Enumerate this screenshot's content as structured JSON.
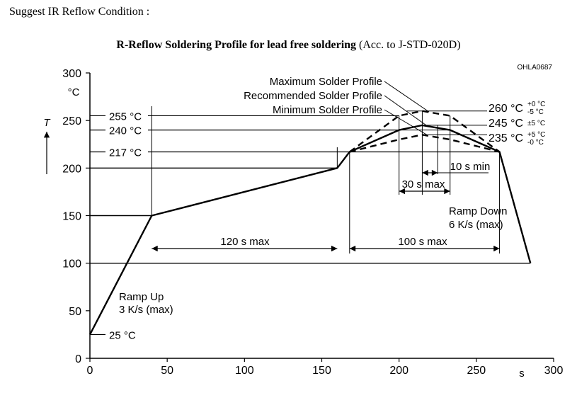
{
  "page": {
    "heading": "Suggest IR Reflow Condition :",
    "title_bold": "R-Reflow Soldering Profile for lead free soldering",
    "title_normal": "(Acc. to J-STD-020D)"
  },
  "chart_data": {
    "type": "line",
    "code": "OHLA0687",
    "x_unit": "s",
    "y_unit_top": "°C",
    "y_symbol": "T",
    "xlim": [
      0,
      300
    ],
    "ylim": [
      0,
      300
    ],
    "x_ticks": [
      0,
      50,
      100,
      150,
      200,
      250,
      300
    ],
    "y_ticks": [
      0,
      50,
      100,
      150,
      200,
      250,
      300
    ],
    "series": [
      {
        "name": "Recommended Solder Profile",
        "style": "solid",
        "x": [
          0,
          40,
          160,
          168,
          200,
          215,
          233,
          265,
          285
        ],
        "y": [
          25,
          150,
          200,
          217,
          240,
          245,
          240,
          217,
          100
        ]
      },
      {
        "name": "Maximum Solder Profile",
        "style": "dashed",
        "x": [
          168,
          200,
          215,
          233,
          265
        ],
        "y": [
          217,
          255,
          260,
          255,
          217
        ]
      },
      {
        "name": "Minimum Solder Profile",
        "style": "dashed",
        "x": [
          168,
          200,
          215,
          233,
          265
        ],
        "y": [
          217,
          230,
          235,
          230,
          217
        ]
      }
    ],
    "reference_temps": [
      {
        "label": "255 °C",
        "value": 255
      },
      {
        "label": "240 °C",
        "value": 240
      },
      {
        "label": "217 °C",
        "value": 217
      },
      {
        "label": "25 °C",
        "value": 25
      }
    ],
    "peak_labels": [
      {
        "label": "260 °C",
        "tol_plus": "+0 °C",
        "tol_minus": "-5 °C",
        "value": 260
      },
      {
        "label": "245 °C",
        "tol": "±5 °C",
        "value": 245
      },
      {
        "label": "235 °C",
        "tol_plus": "+5 °C",
        "tol_minus": "-0 °C",
        "value": 235
      }
    ],
    "annotations": {
      "ramp_up_1": "Ramp Up",
      "ramp_up_2": "3 K/s (max)",
      "ramp_down_1": "Ramp Down",
      "ramp_down_2": "6 K/s (max)",
      "span_120": "120 s max",
      "span_100": "100 s max",
      "span_30": "30 s max",
      "span_10": "10 s min"
    }
  }
}
